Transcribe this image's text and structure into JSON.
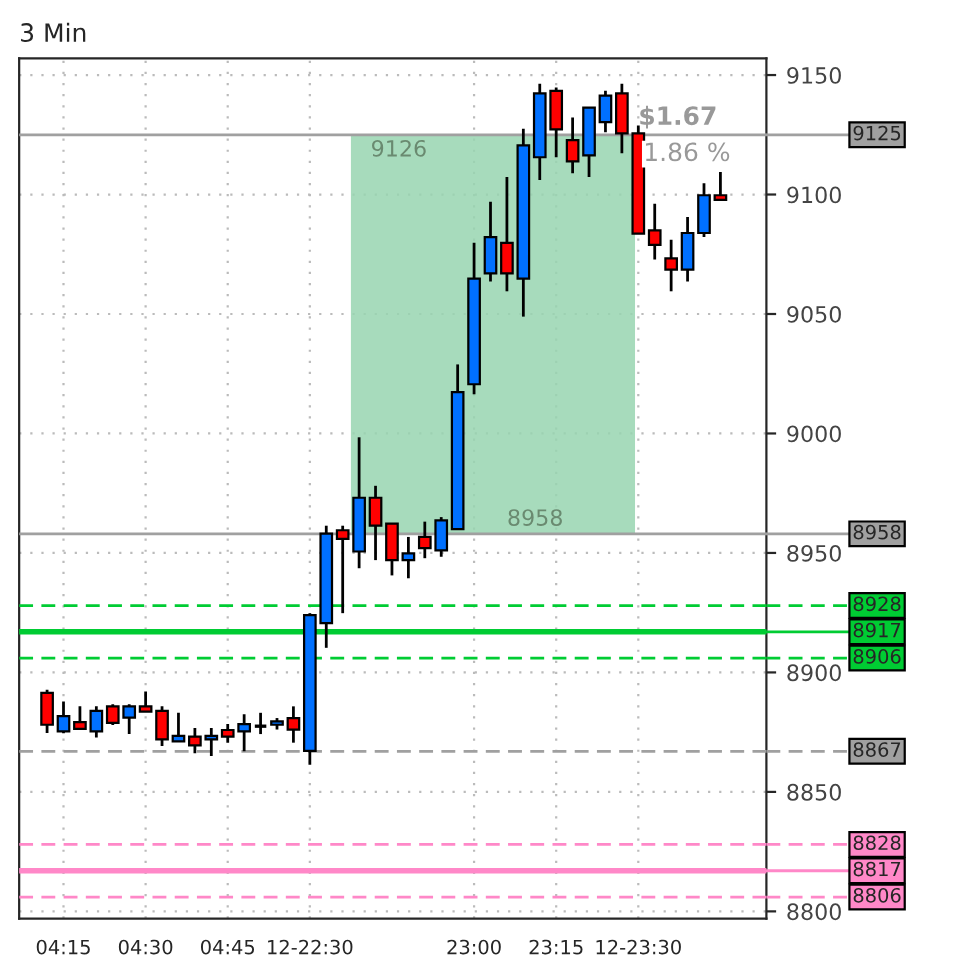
{
  "chart_data": {
    "type": "candlestick",
    "title": "3 Min",
    "categories": [
      null,
      "04:15",
      null,
      null,
      null,
      null,
      "04:30",
      null,
      null,
      null,
      null,
      "04:45",
      null,
      null,
      null,
      null,
      "12-22:30",
      null,
      null,
      null,
      null,
      null,
      null,
      null,
      null,
      null,
      "23:00",
      null,
      null,
      null,
      null,
      "23:15",
      null,
      null,
      null,
      null,
      "12-23:30",
      null,
      null,
      null,
      null,
      null
    ],
    "ohlc": [
      [
        8891.4,
        8892.8,
        8874.7,
        8878.1
      ],
      [
        8875.3,
        8887.8,
        8874.5,
        8881.7
      ],
      [
        8879.2,
        8885.8,
        8876.1,
        8876.4
      ],
      [
        8875.3,
        8885.8,
        8872.8,
        8883.9
      ],
      [
        8885.8,
        8886.7,
        8878.0,
        8878.9
      ],
      [
        8881.1,
        8886.7,
        8874.2,
        8885.8
      ],
      [
        8885.8,
        8892.0,
        8883.6,
        8883.6
      ],
      [
        8883.9,
        8885.8,
        8869.2,
        8872.0
      ],
      [
        8871.1,
        8883.1,
        8871.1,
        8873.4
      ],
      [
        8873.1,
        8876.7,
        8866.2,
        8869.5
      ],
      [
        8872.0,
        8876.7,
        8865.0,
        8873.4
      ],
      [
        8875.9,
        8878.4,
        8870.6,
        8873.1
      ],
      [
        8875.3,
        8882.5,
        8867.0,
        8878.4
      ],
      [
        8877.5,
        8883.1,
        8874.2,
        8877.5
      ],
      [
        8878.1,
        8880.9,
        8876.1,
        8879.5
      ],
      [
        8880.9,
        8885.8,
        8870.6,
        8876.1
      ],
      [
        8867.2,
        8924.8,
        8861.4,
        8924.0
      ],
      [
        8920.6,
        8961.4,
        8910.3,
        8958.1
      ],
      [
        8959.5,
        8961.4,
        8924.8,
        8955.9
      ],
      [
        8950.6,
        8998.4,
        8943.6,
        8973.1
      ],
      [
        8973.1,
        8978.1,
        8947.0,
        8961.4
      ],
      [
        8962.3,
        8962.3,
        8940.6,
        8947.0
      ],
      [
        8947.0,
        8956.7,
        8939.4,
        8949.8
      ],
      [
        8956.7,
        8963.1,
        8947.8,
        8952.0
      ],
      [
        8951.1,
        8965.0,
        8948.4,
        8963.6
      ],
      [
        8960.0,
        9028.9,
        8960.0,
        9017.3
      ],
      [
        9020.6,
        9079.8,
        9016.4,
        9064.8
      ],
      [
        9067.0,
        9097.0,
        9063.6,
        9082.2
      ],
      [
        9079.8,
        9107.3,
        9059.5,
        9067.0
      ],
      [
        9064.8,
        9127.5,
        9048.9,
        9120.6
      ],
      [
        9115.6,
        9146.4,
        9106.1,
        9142.3
      ],
      [
        9143.4,
        9144.8,
        9115.6,
        9127.3
      ],
      [
        9122.8,
        9132.2,
        9108.9,
        9113.9
      ],
      [
        9116.4,
        9136.4,
        9107.3,
        9136.4
      ],
      [
        9130.3,
        9143.4,
        9126.1,
        9141.4
      ],
      [
        9142.3,
        9146.4,
        9117.3,
        9125.6
      ],
      [
        9125.6,
        9128.9,
        9083.6,
        9083.6
      ],
      [
        9085.0,
        9096.1,
        9072.8,
        9078.9
      ],
      [
        9073.3,
        9081.1,
        9059.5,
        9068.6
      ],
      [
        9068.6,
        9090.6,
        9063.6,
        9083.9
      ],
      [
        9083.9,
        9104.7,
        9082.2,
        9099.7
      ],
      [
        9099.7,
        9109.4,
        9097.8,
        9097.8
      ]
    ],
    "colors": [
      "#ff0000",
      "#0070ff",
      "#ff0000",
      "#0070ff",
      "#ff0000",
      "#0070ff",
      "#ff0000",
      "#ff0000",
      "#0070ff",
      "#ff0000",
      "#0070ff",
      "#ff0000",
      "#0070ff",
      "#000000",
      "#0070ff",
      "#ff0000",
      "#0070ff",
      "#0070ff",
      "#ff0000",
      "#0070ff",
      "#ff0000",
      "#ff0000",
      "#0070ff",
      "#ff0000",
      "#0070ff",
      "#0070ff",
      "#0070ff",
      "#0070ff",
      "#ff0000",
      "#0070ff",
      "#0070ff",
      "#ff0000",
      "#ff0000",
      "#0070ff",
      "#0070ff",
      "#ff0000",
      "#ff0000",
      "#ff0000",
      "#ff0000",
      "#0070ff",
      "#0070ff",
      "#ff0000"
    ],
    "ylim": [
      8797,
      9157
    ],
    "yticks": [
      8800,
      8850,
      8900,
      8950,
      9000,
      9050,
      9100,
      9150
    ],
    "grid": true,
    "ref_lines": [
      {
        "axis": "y",
        "value": 9125,
        "label": "9125",
        "color": "#a0a0a0",
        "line_style": "solid"
      },
      {
        "axis": "y",
        "value": 8958,
        "label": "8958",
        "color": "#a0a0a0",
        "line_style": "solid"
      },
      {
        "axis": "y",
        "value": 8928,
        "label": "8928",
        "color": "#00cc33",
        "line_style": "dashed"
      },
      {
        "axis": "y",
        "value": 8917,
        "label": "8917",
        "color": "#00cc33",
        "line_style": "solid"
      },
      {
        "axis": "y",
        "value": 8906,
        "label": "8906",
        "color": "#00cc33",
        "line_style": "dashed"
      },
      {
        "axis": "y",
        "value": 8867,
        "label": "8867",
        "color": "#a0a0a0",
        "line_style": "dashed"
      },
      {
        "axis": "y",
        "value": 8828,
        "label": "8828",
        "color": "#ff88c8",
        "line_style": "dashed"
      },
      {
        "axis": "y",
        "value": 8817,
        "label": "8817",
        "color": "#ff88c8",
        "line_style": "solid"
      },
      {
        "axis": "y",
        "value": 8806,
        "label": "8806",
        "color": "#ff88c8",
        "line_style": "dashed"
      }
    ],
    "bands": [
      {
        "axis": "y",
        "from": 8958,
        "to": 9125,
        "color": "#98d5b0"
      }
    ],
    "annotations": [
      "9126",
      "8958",
      "$1.67",
      "1.86 %"
    ]
  }
}
